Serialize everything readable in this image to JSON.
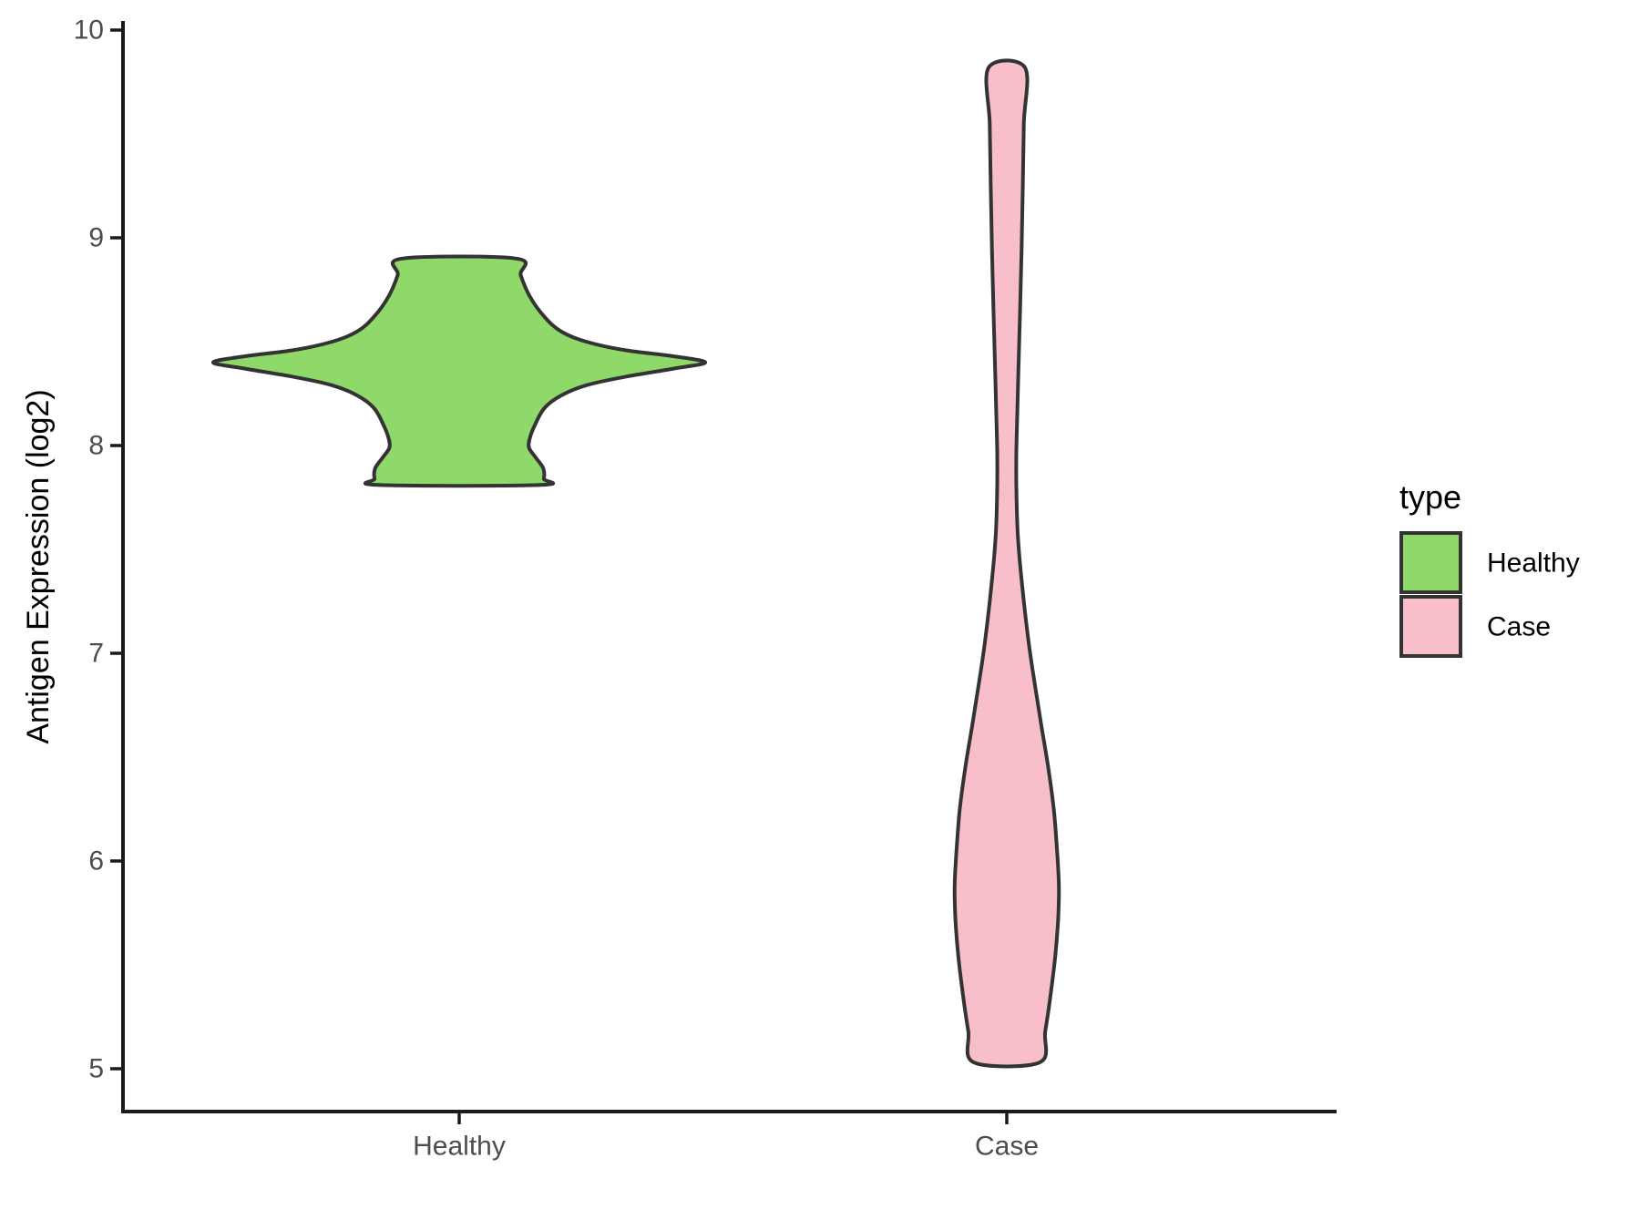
{
  "chart_data": {
    "type": "violin",
    "title": "",
    "xlabel": "",
    "ylabel": "Antigen Expression (log2)",
    "categories": [
      "Healthy",
      "Case"
    ],
    "yticks": [
      10,
      9,
      8,
      7,
      6,
      5
    ],
    "ytick_labels": [
      "10",
      "9",
      "8",
      "7",
      "6",
      "5"
    ],
    "ylim": [
      4.8,
      10.05
    ],
    "grid": false,
    "legend": {
      "title": "type",
      "position": "right",
      "entries": [
        {
          "label": "Healthy",
          "color": "#8ED96A"
        },
        {
          "label": "Case",
          "color": "#F8BFCA"
        }
      ]
    },
    "series": [
      {
        "name": "Healthy",
        "fill": "#8ED96A",
        "min": 7.81,
        "max": 8.9,
        "peak": 8.4,
        "profile": [
          [
            8.9,
            0.104
          ],
          [
            8.82,
            0.112
          ],
          [
            8.72,
            0.128
          ],
          [
            8.62,
            0.155
          ],
          [
            8.55,
            0.185
          ],
          [
            8.5,
            0.231
          ],
          [
            8.46,
            0.3
          ],
          [
            8.43,
            0.39
          ],
          [
            8.4,
            0.448
          ],
          [
            8.37,
            0.39
          ],
          [
            8.33,
            0.3
          ],
          [
            8.29,
            0.231
          ],
          [
            8.24,
            0.185
          ],
          [
            8.18,
            0.155
          ],
          [
            8.1,
            0.138
          ],
          [
            8.04,
            0.129
          ],
          [
            7.99,
            0.127
          ],
          [
            7.94,
            0.14
          ],
          [
            7.89,
            0.153
          ],
          [
            7.84,
            0.154
          ],
          [
            7.81,
            0.147
          ]
        ]
      },
      {
        "name": "Case",
        "fill": "#F8BFCA",
        "min": 5.03,
        "max": 9.82,
        "peak": 5.88,
        "profile": [
          [
            9.82,
            0.033
          ],
          [
            9.55,
            0.031
          ],
          [
            9.25,
            0.0292
          ],
          [
            8.95,
            0.027
          ],
          [
            8.65,
            0.0242
          ],
          [
            8.35,
            0.021
          ],
          [
            8.1,
            0.0185
          ],
          [
            7.92,
            0.0172
          ],
          [
            7.75,
            0.0178
          ],
          [
            7.55,
            0.0205
          ],
          [
            7.3,
            0.029
          ],
          [
            7.05,
            0.04
          ],
          [
            6.85,
            0.051
          ],
          [
            6.65,
            0.063
          ],
          [
            6.45,
            0.0755
          ],
          [
            6.25,
            0.0855
          ],
          [
            6.05,
            0.0915
          ],
          [
            5.88,
            0.0948
          ],
          [
            5.72,
            0.0935
          ],
          [
            5.55,
            0.0885
          ],
          [
            5.35,
            0.0795
          ],
          [
            5.18,
            0.07
          ],
          [
            5.03,
            0.0595
          ]
        ]
      }
    ],
    "colors": {
      "violin_stroke": "#333333",
      "axis_line": "#1A1A1A",
      "tick_label": "#4D4D4D",
      "axis_title": "#000000",
      "legend_text": "#000000",
      "background": "#FFFFFF"
    }
  }
}
